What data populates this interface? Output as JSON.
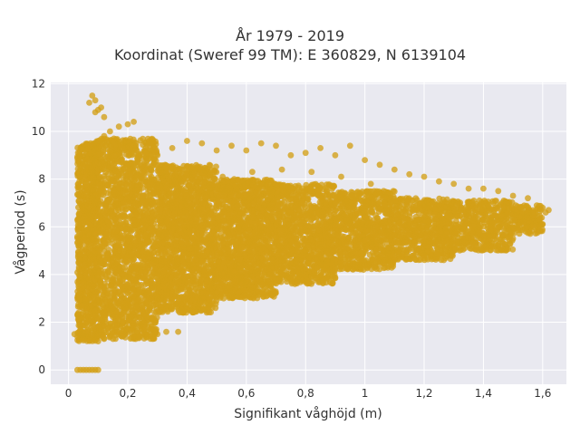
{
  "chart_data": {
    "type": "scatter",
    "title": "År 1979 - 2019",
    "subtitle": "Koordinat (Sweref 99 TM): E 360829, N 6139104",
    "xlabel": "Signifikant våghöjd (m)",
    "ylabel": "Vågperiod (s)",
    "xlim": [
      -0.06,
      1.68
    ],
    "ylim": [
      -0.6,
      12.05
    ],
    "x_ticks": [
      0,
      0.2,
      0.4,
      0.6,
      0.8,
      1,
      1.2,
      1.4,
      1.6
    ],
    "x_tick_labels": [
      "0",
      "0,2",
      "0,4",
      "0,6",
      "0,8",
      "1",
      "1,2",
      "1,4",
      "1,6"
    ],
    "y_ticks": [
      0,
      2,
      4,
      6,
      8,
      10,
      12
    ],
    "y_tick_labels": [
      "0",
      "2",
      "4",
      "6",
      "8",
      "10",
      "12"
    ],
    "grid": true,
    "colors": {
      "points": "#d4a017",
      "plot_bg": "#e9e9f0",
      "grid": "#ffffff"
    },
    "series": [
      {
        "points": [
          [
            0.03,
            0
          ],
          [
            0.04,
            0
          ],
          [
            0.05,
            0
          ],
          [
            0.06,
            0
          ],
          [
            0.07,
            0
          ],
          [
            0.08,
            0
          ],
          [
            0.09,
            0
          ],
          [
            0.1,
            0
          ],
          [
            0.02,
            1.5
          ],
          [
            0.03,
            1.4
          ],
          [
            0.04,
            1.7
          ],
          [
            0.05,
            1.3
          ],
          [
            0.06,
            1.6
          ],
          [
            0.08,
            1.3
          ],
          [
            0.1,
            1.2
          ],
          [
            0.12,
            1.3
          ],
          [
            0.15,
            1.3
          ],
          [
            0.18,
            1.4
          ],
          [
            0.22,
            1.4
          ],
          [
            0.26,
            1.5
          ],
          [
            0.3,
            1.5
          ],
          [
            0.33,
            1.6
          ],
          [
            0.37,
            1.6
          ],
          [
            0.05,
            2.0
          ],
          [
            0.06,
            2.6
          ],
          [
            0.07,
            3.0
          ],
          [
            0.08,
            3.4
          ],
          [
            0.09,
            3.8
          ],
          [
            0.1,
            4.2
          ],
          [
            0.11,
            4.6
          ],
          [
            0.12,
            5.0
          ],
          [
            0.05,
            5.6
          ],
          [
            0.06,
            6.2
          ],
          [
            0.07,
            6.8
          ],
          [
            0.08,
            7.2
          ],
          [
            0.06,
            7.8
          ],
          [
            0.08,
            8.3
          ],
          [
            0.07,
            8.8
          ],
          [
            0.09,
            9.3
          ],
          [
            0.1,
            9.6
          ],
          [
            0.12,
            9.8
          ],
          [
            0.14,
            10.0
          ],
          [
            0.17,
            10.2
          ],
          [
            0.2,
            10.3
          ],
          [
            0.22,
            10.4
          ],
          [
            0.09,
            10.8
          ],
          [
            0.12,
            10.6
          ],
          [
            0.07,
            11.2
          ],
          [
            0.08,
            11.5
          ],
          [
            0.09,
            11.3
          ],
          [
            0.11,
            11.0
          ],
          [
            0.1,
            10.9
          ],
          [
            0.15,
            7.9
          ],
          [
            0.2,
            8.2
          ],
          [
            0.25,
            8.6
          ],
          [
            0.3,
            9.0
          ],
          [
            0.35,
            9.3
          ],
          [
            0.4,
            9.6
          ],
          [
            0.45,
            9.5
          ],
          [
            0.5,
            9.2
          ],
          [
            0.55,
            9.4
          ],
          [
            0.6,
            9.2
          ],
          [
            0.65,
            9.5
          ],
          [
            0.7,
            9.4
          ],
          [
            0.75,
            9.0
          ],
          [
            0.8,
            9.1
          ],
          [
            0.85,
            9.3
          ],
          [
            0.9,
            9.0
          ],
          [
            0.95,
            9.4
          ],
          [
            1.0,
            8.8
          ],
          [
            1.05,
            8.6
          ],
          [
            1.1,
            8.4
          ],
          [
            1.15,
            8.2
          ],
          [
            1.2,
            8.1
          ],
          [
            1.25,
            7.9
          ],
          [
            1.3,
            7.8
          ],
          [
            1.35,
            7.6
          ],
          [
            1.4,
            7.6
          ],
          [
            1.45,
            7.5
          ],
          [
            1.5,
            7.3
          ],
          [
            1.55,
            7.2
          ],
          [
            1.58,
            6.9
          ],
          [
            1.61,
            6.6
          ],
          [
            1.62,
            6.7
          ],
          [
            0.3,
            3.0
          ],
          [
            0.4,
            3.2
          ],
          [
            0.5,
            3.5
          ],
          [
            0.6,
            3.7
          ],
          [
            0.7,
            3.8
          ],
          [
            0.8,
            4.0
          ],
          [
            0.9,
            4.2
          ],
          [
            1.0,
            4.4
          ],
          [
            1.1,
            4.6
          ],
          [
            1.2,
            4.8
          ],
          [
            1.3,
            5.0
          ],
          [
            1.4,
            5.2
          ],
          [
            1.5,
            5.5
          ],
          [
            0.13,
            6.0
          ],
          [
            0.18,
            6.8
          ],
          [
            0.25,
            7.3
          ],
          [
            0.33,
            7.6
          ],
          [
            0.42,
            7.9
          ],
          [
            0.52,
            8.1
          ],
          [
            0.62,
            8.3
          ],
          [
            0.72,
            8.4
          ],
          [
            0.82,
            8.3
          ],
          [
            0.92,
            8.1
          ],
          [
            1.02,
            7.8
          ]
        ],
        "bands": [
          {
            "x_from": 0.03,
            "x_to": 0.1,
            "y_from": 1.2,
            "y_to": 9.6,
            "count": 900
          },
          {
            "x_from": 0.1,
            "x_to": 0.3,
            "y_from": 1.3,
            "y_to": 9.7,
            "count": 1700
          },
          {
            "x_from": 0.3,
            "x_to": 0.5,
            "y_from": 2.4,
            "y_to": 8.6,
            "count": 1600
          },
          {
            "x_from": 0.5,
            "x_to": 0.7,
            "y_from": 3.0,
            "y_to": 8.0,
            "count": 1300
          },
          {
            "x_from": 0.7,
            "x_to": 0.9,
            "y_from": 3.6,
            "y_to": 7.8,
            "count": 1000
          },
          {
            "x_from": 0.9,
            "x_to": 1.1,
            "y_from": 4.2,
            "y_to": 7.5,
            "count": 800
          },
          {
            "x_from": 1.1,
            "x_to": 1.3,
            "y_from": 4.6,
            "y_to": 7.2,
            "count": 600
          },
          {
            "x_from": 1.3,
            "x_to": 1.5,
            "y_from": 5.0,
            "y_to": 7.1,
            "count": 450
          },
          {
            "x_from": 1.5,
            "x_to": 1.6,
            "y_from": 5.7,
            "y_to": 6.9,
            "count": 160
          }
        ]
      }
    ]
  }
}
